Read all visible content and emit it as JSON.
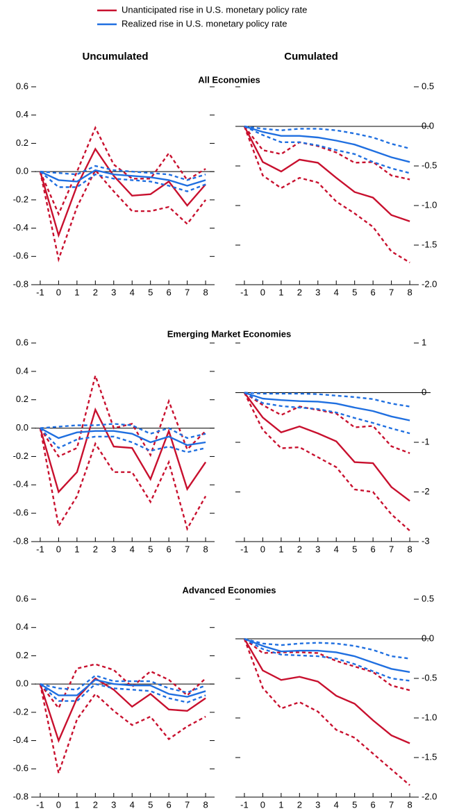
{
  "legend": [
    {
      "name": "Unanticipated rise in U.S. monetary policy rate",
      "color": "#c8102e"
    },
    {
      "name": "Realized rise in U.S. monetary policy rate",
      "color": "#1f6fe0"
    }
  ],
  "column_titles": [
    "Uncumulated",
    "Cumulated"
  ],
  "row_titles": [
    "All Economies",
    "Emerging Market Economies",
    "Advanced Economies"
  ],
  "chart_data": [
    {
      "type": "line",
      "x": [
        -1,
        0,
        1,
        2,
        3,
        4,
        5,
        6,
        7,
        8
      ],
      "xlim": [
        -1.3,
        8.3
      ],
      "xticks": [
        -1,
        0,
        1,
        2,
        3,
        4,
        5,
        6,
        7,
        8
      ],
      "ylim": [
        -0.8,
        0.6
      ],
      "yticks": [
        -0.8,
        -0.6,
        -0.4,
        -0.2,
        {
          "value": 0,
          "label": "0.0"
        },
        0.2,
        0.4,
        0.6
      ],
      "series": [
        {
          "color": "#c8102e",
          "values": [
            0,
            -0.45,
            -0.1,
            0.16,
            -0.03,
            -0.17,
            -0.16,
            -0.07,
            -0.24,
            -0.09
          ],
          "upper": [
            0,
            -0.3,
            0.0,
            0.31,
            0.05,
            -0.05,
            -0.05,
            0.13,
            -0.06,
            0.02
          ],
          "lower": [
            0,
            -0.62,
            -0.25,
            0.01,
            -0.14,
            -0.28,
            -0.28,
            -0.25,
            -0.37,
            -0.2
          ]
        },
        {
          "color": "#1f6fe0",
          "values": [
            0,
            -0.06,
            -0.07,
            0.01,
            -0.02,
            -0.03,
            -0.04,
            -0.06,
            -0.1,
            -0.06
          ],
          "upper": [
            0,
            -0.01,
            -0.02,
            0.04,
            0.01,
            0.0,
            -0.01,
            -0.02,
            -0.06,
            -0.02
          ],
          "lower": [
            0,
            -0.11,
            -0.11,
            -0.02,
            -0.05,
            -0.06,
            -0.07,
            -0.1,
            -0.14,
            -0.09
          ]
        }
      ]
    },
    {
      "type": "line",
      "x": [
        -1,
        0,
        1,
        2,
        3,
        4,
        5,
        6,
        7,
        8
      ],
      "xlim": [
        -1.3,
        8.3
      ],
      "xticks": [
        -1,
        0,
        1,
        2,
        3,
        4,
        5,
        6,
        7,
        8
      ],
      "ylim": [
        -2.0,
        0.5
      ],
      "yticks": [
        {
          "value": -2,
          "label": "-2.0"
        },
        -1.5,
        {
          "value": -1,
          "label": "-1.0"
        },
        -0.5,
        {
          "value": 0,
          "label": "0.0"
        },
        0.5
      ],
      "series": [
        {
          "color": "#c8102e",
          "values": [
            0,
            -0.45,
            -0.57,
            -0.42,
            -0.46,
            -0.65,
            -0.83,
            -0.9,
            -1.12,
            -1.2
          ],
          "upper": [
            0,
            -0.3,
            -0.35,
            -0.2,
            -0.25,
            -0.33,
            -0.46,
            -0.45,
            -0.62,
            -0.67
          ],
          "lower": [
            0,
            -0.62,
            -0.78,
            -0.65,
            -0.71,
            -0.95,
            -1.1,
            -1.27,
            -1.58,
            -1.72
          ]
        },
        {
          "color": "#1f6fe0",
          "values": [
            0,
            -0.07,
            -0.12,
            -0.12,
            -0.14,
            -0.18,
            -0.23,
            -0.31,
            -0.39,
            -0.45
          ],
          "upper": [
            0,
            -0.03,
            -0.05,
            -0.03,
            -0.03,
            -0.05,
            -0.09,
            -0.14,
            -0.22,
            -0.28
          ],
          "lower": [
            0,
            -0.11,
            -0.2,
            -0.2,
            -0.24,
            -0.3,
            -0.35,
            -0.45,
            -0.53,
            -0.59
          ]
        }
      ]
    },
    {
      "type": "line",
      "x": [
        -1,
        0,
        1,
        2,
        3,
        4,
        5,
        6,
        7,
        8
      ],
      "xlim": [
        -1.3,
        8.3
      ],
      "xticks": [
        -1,
        0,
        1,
        2,
        3,
        4,
        5,
        6,
        7,
        8
      ],
      "ylim": [
        -0.8,
        0.6
      ],
      "yticks": [
        -0.8,
        -0.6,
        -0.4,
        -0.2,
        {
          "value": 0,
          "label": "0.0"
        },
        0.2,
        0.4,
        0.6
      ],
      "series": [
        {
          "color": "#c8102e",
          "values": [
            0,
            -0.45,
            -0.31,
            0.13,
            -0.13,
            -0.14,
            -0.36,
            -0.02,
            -0.43,
            -0.24
          ],
          "upper": [
            0,
            -0.2,
            -0.14,
            0.37,
            0.0,
            0.03,
            -0.19,
            0.19,
            -0.15,
            -0.02
          ],
          "lower": [
            0,
            -0.69,
            -0.48,
            -0.11,
            -0.31,
            -0.31,
            -0.52,
            -0.24,
            -0.71,
            -0.48
          ]
        },
        {
          "color": "#1f6fe0",
          "values": [
            0,
            -0.07,
            -0.03,
            -0.02,
            -0.02,
            -0.04,
            -0.1,
            -0.06,
            -0.12,
            -0.1
          ],
          "upper": [
            0,
            0.01,
            0.02,
            0.02,
            0.03,
            0.02,
            -0.04,
            0.0,
            -0.07,
            -0.04
          ],
          "lower": [
            0,
            -0.14,
            -0.08,
            -0.06,
            -0.06,
            -0.1,
            -0.16,
            -0.13,
            -0.17,
            -0.14
          ]
        }
      ]
    },
    {
      "type": "line",
      "x": [
        -1,
        0,
        1,
        2,
        3,
        4,
        5,
        6,
        7,
        8
      ],
      "xlim": [
        -1.3,
        8.3
      ],
      "xticks": [
        -1,
        0,
        1,
        2,
        3,
        4,
        5,
        6,
        7,
        8
      ],
      "ylim": [
        -3,
        1
      ],
      "yticks": [
        -3,
        -2,
        -1,
        0,
        1
      ],
      "series": [
        {
          "color": "#c8102e",
          "values": [
            0,
            -0.5,
            -0.8,
            -0.68,
            -0.82,
            -0.98,
            -1.4,
            -1.42,
            -1.9,
            -2.18
          ],
          "upper": [
            0,
            -0.25,
            -0.45,
            -0.28,
            -0.35,
            -0.42,
            -0.7,
            -0.67,
            -1.08,
            -1.22
          ],
          "lower": [
            0,
            -0.75,
            -1.12,
            -1.1,
            -1.3,
            -1.5,
            -1.95,
            -2.0,
            -2.45,
            -2.78
          ]
        },
        {
          "color": "#1f6fe0",
          "values": [
            0,
            -0.12,
            -0.15,
            -0.17,
            -0.18,
            -0.22,
            -0.3,
            -0.37,
            -0.48,
            -0.56
          ],
          "upper": [
            0,
            -0.02,
            -0.02,
            -0.02,
            -0.03,
            -0.06,
            -0.09,
            -0.13,
            -0.22,
            -0.28
          ],
          "lower": [
            0,
            -0.21,
            -0.27,
            -0.3,
            -0.33,
            -0.4,
            -0.51,
            -0.61,
            -0.72,
            -0.82
          ]
        }
      ]
    },
    {
      "type": "line",
      "x": [
        -1,
        0,
        1,
        2,
        3,
        4,
        5,
        6,
        7,
        8
      ],
      "xlim": [
        -1.3,
        8.3
      ],
      "xticks": [
        -1,
        0,
        1,
        2,
        3,
        4,
        5,
        6,
        7,
        8
      ],
      "ylim": [
        -0.8,
        0.6
      ],
      "yticks": [
        -0.8,
        -0.6,
        -0.4,
        -0.2,
        {
          "value": 0,
          "label": "0.0"
        },
        0.2,
        0.4,
        0.6
      ],
      "series": [
        {
          "color": "#c8102e",
          "values": [
            0,
            -0.4,
            -0.1,
            0.04,
            -0.04,
            -0.16,
            -0.07,
            -0.18,
            -0.19,
            -0.1
          ],
          "upper": [
            0,
            -0.17,
            0.11,
            0.14,
            0.1,
            -0.02,
            0.09,
            0.03,
            -0.08,
            0.04
          ],
          "lower": [
            0,
            -0.63,
            -0.25,
            -0.07,
            -0.19,
            -0.29,
            -0.23,
            -0.39,
            -0.3,
            -0.23
          ]
        },
        {
          "color": "#1f6fe0",
          "values": [
            0,
            -0.08,
            -0.08,
            0.03,
            0.0,
            -0.01,
            -0.01,
            -0.07,
            -0.09,
            -0.05
          ],
          "upper": [
            0,
            -0.03,
            -0.04,
            0.06,
            0.02,
            0.02,
            0.02,
            -0.03,
            -0.06,
            -0.01
          ],
          "lower": [
            0,
            -0.12,
            -0.12,
            0.0,
            -0.03,
            -0.04,
            -0.05,
            -0.1,
            -0.13,
            -0.08
          ]
        }
      ]
    },
    {
      "type": "line",
      "x": [
        -1,
        0,
        1,
        2,
        3,
        4,
        5,
        6,
        7,
        8
      ],
      "xlim": [
        -1.3,
        8.3
      ],
      "xticks": [
        -1,
        0,
        1,
        2,
        3,
        4,
        5,
        6,
        7,
        8
      ],
      "ylim": [
        -2.0,
        0.5
      ],
      "yticks": [
        {
          "value": -2,
          "label": "-2.0"
        },
        -1.5,
        {
          "value": -1,
          "label": "-1.0"
        },
        -0.5,
        {
          "value": 0,
          "label": "0.0"
        },
        0.5
      ],
      "series": [
        {
          "color": "#c8102e",
          "values": [
            0,
            -0.4,
            -0.52,
            -0.48,
            -0.54,
            -0.72,
            -0.82,
            -1.03,
            -1.22,
            -1.32
          ],
          "upper": [
            0,
            -0.18,
            -0.17,
            -0.17,
            -0.18,
            -0.28,
            -0.35,
            -0.42,
            -0.59,
            -0.65
          ],
          "lower": [
            0,
            -0.62,
            -0.88,
            -0.8,
            -0.92,
            -1.15,
            -1.25,
            -1.45,
            -1.65,
            -1.85
          ]
        },
        {
          "color": "#1f6fe0",
          "values": [
            0,
            -0.09,
            -0.16,
            -0.15,
            -0.15,
            -0.17,
            -0.22,
            -0.3,
            -0.38,
            -0.42
          ],
          "upper": [
            0,
            -0.06,
            -0.08,
            -0.06,
            -0.05,
            -0.06,
            -0.09,
            -0.14,
            -0.22,
            -0.25
          ],
          "lower": [
            0,
            -0.13,
            -0.2,
            -0.21,
            -0.22,
            -0.25,
            -0.32,
            -0.41,
            -0.5,
            -0.53
          ]
        }
      ]
    }
  ]
}
